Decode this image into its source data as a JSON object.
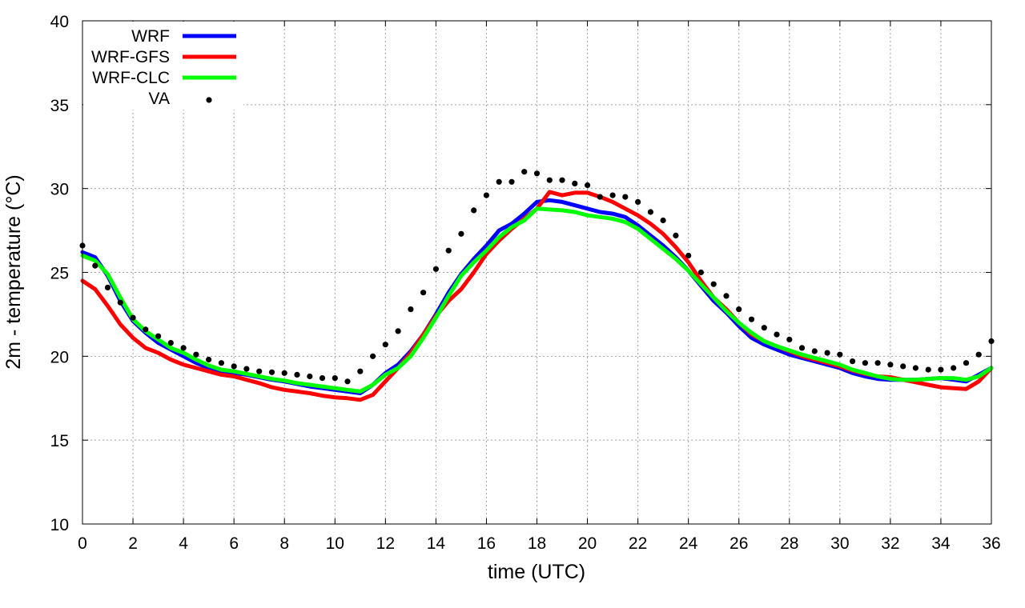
{
  "chart_data": {
    "type": "line",
    "title": "",
    "xlabel": "time (UTC)",
    "ylabel": "2m - temperature (°C)",
    "xlim": [
      0,
      36
    ],
    "ylim": [
      10,
      40
    ],
    "xticks": [
      0,
      2,
      4,
      6,
      8,
      10,
      12,
      14,
      16,
      18,
      20,
      22,
      24,
      26,
      28,
      30,
      32,
      34,
      36
    ],
    "yticks": [
      10,
      15,
      20,
      25,
      30,
      35,
      40
    ],
    "grid": true,
    "legend_position": "top-left",
    "series": [
      {
        "name": "WRF",
        "style": "line",
        "color": "#0000ff",
        "points": [
          [
            0,
            26.2
          ],
          [
            0.5,
            25.9
          ],
          [
            1,
            24.8
          ],
          [
            1.5,
            23.3
          ],
          [
            2,
            22.1
          ],
          [
            2.5,
            21.4
          ],
          [
            3,
            20.8
          ],
          [
            3.5,
            20.4
          ],
          [
            4,
            20.0
          ],
          [
            4.5,
            19.6
          ],
          [
            5,
            19.3
          ],
          [
            5.5,
            19.1
          ],
          [
            6,
            19.0
          ],
          [
            6.5,
            18.9
          ],
          [
            7,
            18.75
          ],
          [
            7.5,
            18.6
          ],
          [
            8,
            18.5
          ],
          [
            8.5,
            18.35
          ],
          [
            9,
            18.2
          ],
          [
            9.5,
            18.1
          ],
          [
            10,
            18.0
          ],
          [
            10.5,
            17.9
          ],
          [
            11,
            17.8
          ],
          [
            11.5,
            18.3
          ],
          [
            12,
            19.0
          ],
          [
            12.5,
            19.5
          ],
          [
            13,
            20.3
          ],
          [
            13.5,
            21.3
          ],
          [
            14,
            22.5
          ],
          [
            14.5,
            23.8
          ],
          [
            15,
            24.9
          ],
          [
            15.5,
            25.8
          ],
          [
            16,
            26.6
          ],
          [
            16.5,
            27.5
          ],
          [
            17,
            27.9
          ],
          [
            17.5,
            28.5
          ],
          [
            18,
            29.2
          ],
          [
            18.5,
            29.3
          ],
          [
            19,
            29.2
          ],
          [
            19.5,
            29.0
          ],
          [
            20,
            28.8
          ],
          [
            20.5,
            28.6
          ],
          [
            21,
            28.5
          ],
          [
            21.5,
            28.3
          ],
          [
            22,
            27.8
          ],
          [
            22.5,
            27.2
          ],
          [
            23,
            26.6
          ],
          [
            23.5,
            25.9
          ],
          [
            24,
            25.1
          ],
          [
            24.5,
            24.2
          ],
          [
            25,
            23.3
          ],
          [
            25.5,
            22.6
          ],
          [
            26,
            21.8
          ],
          [
            26.5,
            21.1
          ],
          [
            27,
            20.7
          ],
          [
            27.5,
            20.4
          ],
          [
            28,
            20.1
          ],
          [
            28.5,
            19.9
          ],
          [
            29,
            19.7
          ],
          [
            29.5,
            19.5
          ],
          [
            30,
            19.3
          ],
          [
            30.5,
            19.0
          ],
          [
            31,
            18.8
          ],
          [
            31.5,
            18.65
          ],
          [
            32,
            18.6
          ],
          [
            32.5,
            18.6
          ],
          [
            33,
            18.6
          ],
          [
            33.5,
            18.65
          ],
          [
            34,
            18.7
          ],
          [
            34.5,
            18.6
          ],
          [
            35,
            18.5
          ],
          [
            35.5,
            18.9
          ],
          [
            36,
            19.3
          ]
        ]
      },
      {
        "name": "WRF-GFS",
        "style": "line",
        "color": "#ff0000",
        "points": [
          [
            0,
            24.5
          ],
          [
            0.5,
            24.0
          ],
          [
            1,
            23.0
          ],
          [
            1.5,
            21.9
          ],
          [
            2,
            21.1
          ],
          [
            2.5,
            20.5
          ],
          [
            3,
            20.2
          ],
          [
            3.5,
            19.8
          ],
          [
            4,
            19.5
          ],
          [
            4.5,
            19.3
          ],
          [
            5,
            19.1
          ],
          [
            5.5,
            18.9
          ],
          [
            6,
            18.8
          ],
          [
            6.5,
            18.6
          ],
          [
            7,
            18.4
          ],
          [
            7.5,
            18.15
          ],
          [
            8,
            18.0
          ],
          [
            8.5,
            17.9
          ],
          [
            9,
            17.8
          ],
          [
            9.5,
            17.65
          ],
          [
            10,
            17.55
          ],
          [
            10.5,
            17.5
          ],
          [
            11,
            17.4
          ],
          [
            11.5,
            17.7
          ],
          [
            12,
            18.5
          ],
          [
            12.5,
            19.3
          ],
          [
            13,
            20.2
          ],
          [
            13.5,
            21.3
          ],
          [
            14,
            22.4
          ],
          [
            14.5,
            23.3
          ],
          [
            15,
            24.0
          ],
          [
            15.5,
            25.0
          ],
          [
            16,
            26.1
          ],
          [
            16.5,
            26.9
          ],
          [
            17,
            27.6
          ],
          [
            17.5,
            28.2
          ],
          [
            18,
            28.8
          ],
          [
            18.5,
            29.8
          ],
          [
            19,
            29.6
          ],
          [
            19.5,
            29.75
          ],
          [
            20,
            29.75
          ],
          [
            20.5,
            29.5
          ],
          [
            21,
            29.2
          ],
          [
            21.5,
            28.8
          ],
          [
            22,
            28.4
          ],
          [
            22.5,
            27.9
          ],
          [
            23,
            27.3
          ],
          [
            23.5,
            26.5
          ],
          [
            24,
            25.6
          ],
          [
            24.5,
            24.5
          ],
          [
            25,
            23.5
          ],
          [
            25.5,
            22.8
          ],
          [
            26,
            22.0
          ],
          [
            26.5,
            21.3
          ],
          [
            27,
            20.9
          ],
          [
            27.5,
            20.6
          ],
          [
            28,
            20.3
          ],
          [
            28.5,
            20.0
          ],
          [
            29,
            19.8
          ],
          [
            29.5,
            19.6
          ],
          [
            30,
            19.4
          ],
          [
            30.5,
            19.15
          ],
          [
            31,
            18.95
          ],
          [
            31.5,
            18.8
          ],
          [
            32,
            18.75
          ],
          [
            32.5,
            18.6
          ],
          [
            33,
            18.45
          ],
          [
            33.5,
            18.3
          ],
          [
            34,
            18.15
          ],
          [
            34.5,
            18.1
          ],
          [
            35,
            18.05
          ],
          [
            35.5,
            18.5
          ],
          [
            36,
            19.3
          ]
        ]
      },
      {
        "name": "WRF-CLC",
        "style": "line",
        "color": "#00ff00",
        "points": [
          [
            0,
            26.0
          ],
          [
            0.5,
            25.7
          ],
          [
            1,
            24.9
          ],
          [
            1.5,
            23.5
          ],
          [
            2,
            22.2
          ],
          [
            2.5,
            21.5
          ],
          [
            3,
            21.0
          ],
          [
            3.5,
            20.5
          ],
          [
            4,
            20.2
          ],
          [
            4.5,
            19.8
          ],
          [
            5,
            19.45
          ],
          [
            5.5,
            19.2
          ],
          [
            6,
            19.1
          ],
          [
            6.5,
            18.95
          ],
          [
            7,
            18.8
          ],
          [
            7.5,
            18.65
          ],
          [
            8,
            18.55
          ],
          [
            8.5,
            18.4
          ],
          [
            9,
            18.3
          ],
          [
            9.5,
            18.2
          ],
          [
            10,
            18.1
          ],
          [
            10.5,
            18.0
          ],
          [
            11,
            17.9
          ],
          [
            11.5,
            18.3
          ],
          [
            12,
            18.9
          ],
          [
            12.5,
            19.3
          ],
          [
            13,
            20.0
          ],
          [
            13.5,
            21.1
          ],
          [
            14,
            22.3
          ],
          [
            14.5,
            23.6
          ],
          [
            15,
            24.8
          ],
          [
            15.5,
            25.6
          ],
          [
            16,
            26.3
          ],
          [
            16.5,
            27.1
          ],
          [
            17,
            27.7
          ],
          [
            17.5,
            28.1
          ],
          [
            18,
            28.8
          ],
          [
            18.5,
            28.75
          ],
          [
            19,
            28.7
          ],
          [
            19.5,
            28.6
          ],
          [
            20,
            28.4
          ],
          [
            20.5,
            28.3
          ],
          [
            21,
            28.2
          ],
          [
            21.5,
            28.0
          ],
          [
            22,
            27.6
          ],
          [
            22.5,
            27.0
          ],
          [
            23,
            26.4
          ],
          [
            23.5,
            25.8
          ],
          [
            24,
            25.1
          ],
          [
            24.5,
            24.3
          ],
          [
            25,
            23.5
          ],
          [
            25.5,
            22.7
          ],
          [
            26,
            22.0
          ],
          [
            26.5,
            21.4
          ],
          [
            27,
            20.9
          ],
          [
            27.5,
            20.6
          ],
          [
            28,
            20.35
          ],
          [
            28.5,
            20.1
          ],
          [
            29,
            19.9
          ],
          [
            29.5,
            19.7
          ],
          [
            30,
            19.5
          ],
          [
            30.5,
            19.2
          ],
          [
            31,
            19.0
          ],
          [
            31.5,
            18.8
          ],
          [
            32,
            18.65
          ],
          [
            32.5,
            18.6
          ],
          [
            33,
            18.6
          ],
          [
            33.5,
            18.65
          ],
          [
            34,
            18.7
          ],
          [
            34.5,
            18.7
          ],
          [
            35,
            18.6
          ],
          [
            35.5,
            18.8
          ],
          [
            36,
            19.3
          ]
        ]
      },
      {
        "name": "VA",
        "style": "points",
        "color": "#000000",
        "points": [
          [
            0,
            26.6
          ],
          [
            0.5,
            25.4
          ],
          [
            1,
            24.1
          ],
          [
            1.5,
            23.2
          ],
          [
            2,
            22.3
          ],
          [
            2.5,
            21.6
          ],
          [
            3,
            21.2
          ],
          [
            3.5,
            20.8
          ],
          [
            4,
            20.5
          ],
          [
            4.5,
            20.1
          ],
          [
            5,
            19.8
          ],
          [
            5.5,
            19.6
          ],
          [
            6,
            19.4
          ],
          [
            6.5,
            19.25
          ],
          [
            7,
            19.1
          ],
          [
            7.5,
            19.05
          ],
          [
            8,
            19.0
          ],
          [
            8.5,
            18.9
          ],
          [
            9,
            18.8
          ],
          [
            9.5,
            18.7
          ],
          [
            10,
            18.7
          ],
          [
            10.5,
            18.5
          ],
          [
            11,
            19.1
          ],
          [
            11.5,
            20.0
          ],
          [
            12,
            20.7
          ],
          [
            12.5,
            21.5
          ],
          [
            13,
            22.8
          ],
          [
            13.5,
            23.8
          ],
          [
            14,
            25.2
          ],
          [
            14.5,
            26.3
          ],
          [
            15,
            27.3
          ],
          [
            15.5,
            28.7
          ],
          [
            16,
            29.6
          ],
          [
            16.5,
            30.4
          ],
          [
            17,
            30.4
          ],
          [
            17.5,
            31.0
          ],
          [
            18,
            30.9
          ],
          [
            18.5,
            30.5
          ],
          [
            19,
            30.5
          ],
          [
            19.5,
            30.3
          ],
          [
            20,
            30.2
          ],
          [
            20.5,
            29.5
          ],
          [
            21,
            29.6
          ],
          [
            21.5,
            29.5
          ],
          [
            22,
            29.2
          ],
          [
            22.5,
            28.6
          ],
          [
            23,
            28.1
          ],
          [
            23.5,
            27.2
          ],
          [
            24,
            26.0
          ],
          [
            24.5,
            25.0
          ],
          [
            25,
            24.3
          ],
          [
            25.5,
            23.6
          ],
          [
            26,
            22.8
          ],
          [
            26.5,
            22.2
          ],
          [
            27,
            21.7
          ],
          [
            27.5,
            21.3
          ],
          [
            28,
            21.0
          ],
          [
            28.5,
            20.5
          ],
          [
            29,
            20.3
          ],
          [
            29.5,
            20.2
          ],
          [
            30,
            20.1
          ],
          [
            30.5,
            19.7
          ],
          [
            31,
            19.6
          ],
          [
            31.5,
            19.6
          ],
          [
            32,
            19.5
          ],
          [
            32.5,
            19.4
          ],
          [
            33,
            19.3
          ],
          [
            33.5,
            19.2
          ],
          [
            34,
            19.2
          ],
          [
            34.5,
            19.3
          ],
          [
            35,
            19.6
          ],
          [
            35.5,
            20.1
          ],
          [
            36,
            20.9
          ]
        ]
      }
    ]
  }
}
